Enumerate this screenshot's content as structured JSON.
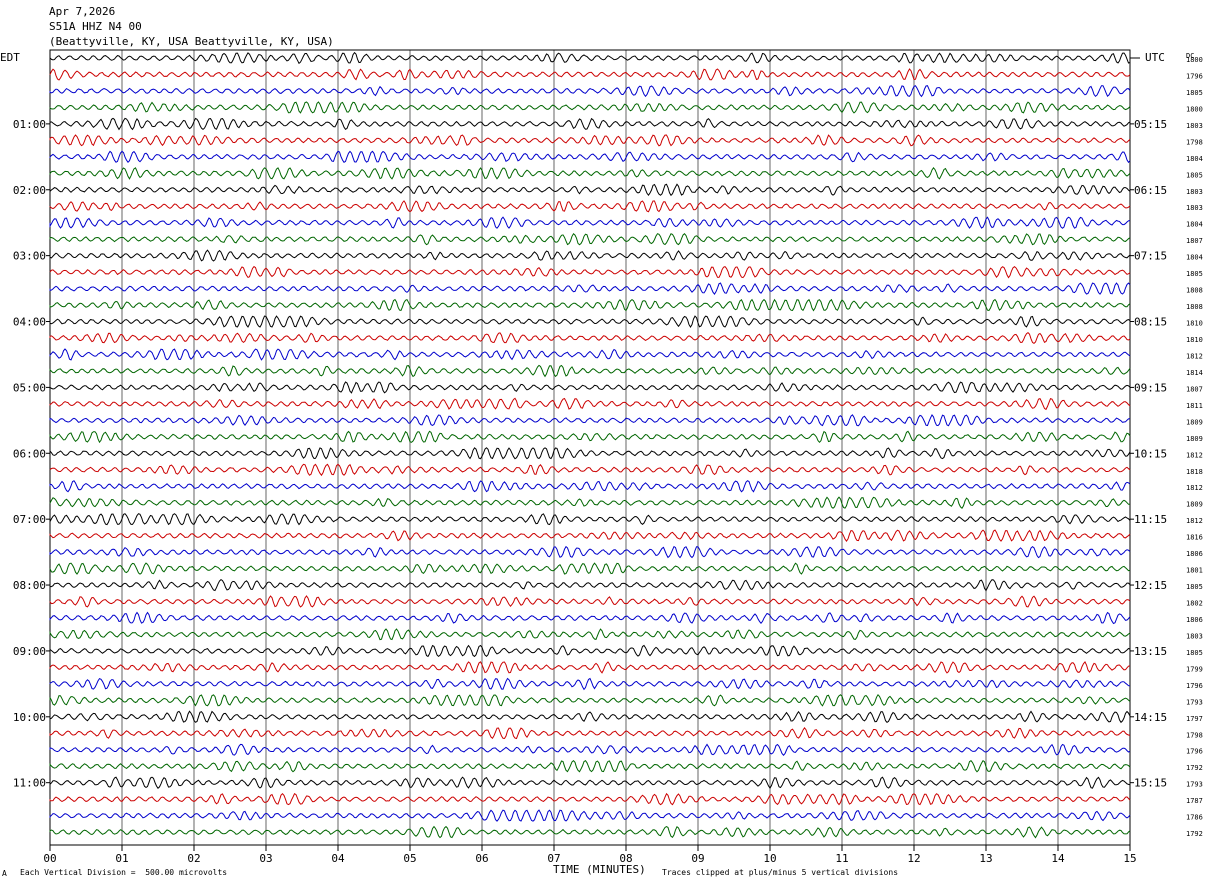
{
  "header": {
    "date": "Apr 7,2026",
    "station": "S51A HHZ N4 00",
    "location": "(Beattyville, KY, USA Beattyville, KY, USA)"
  },
  "labels": {
    "left_tz": "EDT",
    "right_tz": "UTC",
    "dc_header": "DC"
  },
  "footer": {
    "scale": "Each Vertical Division =  500.00 microvolts",
    "xlabel": "TIME (MINUTES)",
    "clip_note": "Traces clipped at plus/minus 5 vertical divisions",
    "corner": "A"
  },
  "colors": {
    "trace_cycle": [
      "#000000",
      "#cc0000",
      "#0000cc",
      "#006600"
    ],
    "grid": "#000000"
  },
  "chart_data": {
    "type": "line",
    "traces_per_hour": 4,
    "minutes_per_trace": 15,
    "x_ticks": [
      "00",
      "01",
      "02",
      "03",
      "04",
      "05",
      "06",
      "07",
      "08",
      "09",
      "10",
      "11",
      "12",
      "13",
      "14",
      "15"
    ],
    "xlim": [
      0,
      15
    ],
    "left_hour_labels": [
      "01:00",
      "02:00",
      "03:00",
      "04:00",
      "05:00",
      "06:00",
      "07:00",
      "08:00",
      "09:00",
      "10:00",
      "11:00"
    ],
    "right_hour_labels": [
      "05:15",
      "06:15",
      "07:15",
      "08:15",
      "09:15",
      "10:15",
      "11:15",
      "12:15",
      "13:15",
      "14:15",
      "15:15"
    ],
    "dc_offsets": [
      "1800",
      "1796",
      "1805",
      "1800",
      "1803",
      "1798",
      "1804",
      "1805",
      "1803",
      "1803",
      "1804",
      "1807",
      "1804",
      "1805",
      "1808",
      "1808",
      "1810",
      "1810",
      "1812",
      "1814",
      "1807",
      "1811",
      "1809",
      "1809",
      "1812",
      "1818",
      "1812",
      "1809",
      "1812",
      "1816",
      "1806",
      "1801",
      "1805",
      "1802",
      "1806",
      "1803",
      "1805",
      "1799",
      "1796",
      "1793",
      "1797",
      "1798",
      "1796",
      "1792",
      "1793",
      "1787",
      "1786",
      "1792"
    ]
  }
}
